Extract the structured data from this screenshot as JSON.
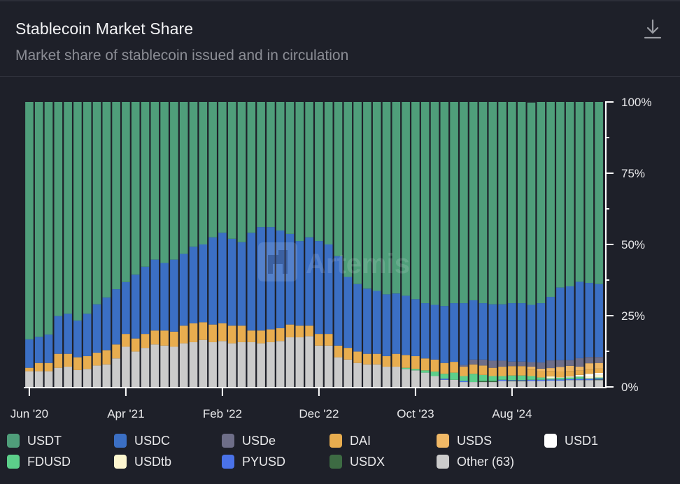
{
  "header": {
    "title": "Stablecoin Market Share",
    "subtitle": "Market share of stablecoin issued and in circulation",
    "download_icon": "download-icon"
  },
  "watermark": {
    "text": "Artemis",
    "icon": "artemis-logo-icon"
  },
  "colors": {
    "background": "#1e2029",
    "axis": "#ffffff"
  },
  "chart_data": {
    "type": "bar",
    "stacked": true,
    "normalized": true,
    "title": "Stablecoin Market Share",
    "subtitle": "Market share of stablecoin issued and in circulation",
    "xlabel": "",
    "ylabel": "",
    "ylim": [
      0,
      100
    ],
    "y_axis_position": "right",
    "y_ticks": [
      "0%",
      "25%",
      "50%",
      "75%",
      "100%"
    ],
    "y_tick_values": [
      0,
      25,
      50,
      75,
      100
    ],
    "y_minor_tick_values": [
      12.5,
      37.5,
      62.5,
      87.5
    ],
    "x_tick_labels": [
      "Jun '20",
      "Apr '21",
      "Feb '22",
      "Dec '22",
      "Oct '23",
      "Aug '24"
    ],
    "x_tick_indices": [
      0,
      10,
      20,
      30,
      40,
      50
    ],
    "legend_position": "bottom",
    "categories": [
      "Jun 2020",
      "Jul 2020",
      "Aug 2020",
      "Sep 2020",
      "Oct 2020",
      "Nov 2020",
      "Dec 2020",
      "Jan 2021",
      "Feb 2021",
      "Mar 2021",
      "Apr 2021",
      "May 2021",
      "Jun 2021",
      "Jul 2021",
      "Aug 2021",
      "Sep 2021",
      "Oct 2021",
      "Nov 2021",
      "Dec 2021",
      "Jan 2022",
      "Feb 2022",
      "Mar 2022",
      "Apr 2022",
      "May 2022",
      "Jun 2022",
      "Jul 2022",
      "Aug 2022",
      "Sep 2022",
      "Oct 2022",
      "Nov 2022",
      "Dec 2022",
      "Jan 2023",
      "Feb 2023",
      "Mar 2023",
      "Apr 2023",
      "May 2023",
      "Jun 2023",
      "Jul 2023",
      "Aug 2023",
      "Sep 2023",
      "Oct 2023",
      "Nov 2023",
      "Dec 2023",
      "Jan 2024",
      "Feb 2024",
      "Mar 2024",
      "Apr 2024",
      "May 2024",
      "Jun 2024",
      "Jul 2024",
      "Aug 2024",
      "Sep 2024",
      "Oct 2024",
      "Nov 2024",
      "Dec 2024",
      "Jan 2025",
      "Feb 2025",
      "Mar 2025",
      "Apr 2025",
      "May 2025"
    ],
    "stack_order_bottom_to_top": [
      "Other (63)",
      "USDX",
      "PYUSD",
      "FDUSD",
      "USDtb",
      "USD1",
      "DAI",
      "USDS",
      "USDe",
      "USDC",
      "USDT"
    ],
    "series": [
      {
        "name": "USDT",
        "color": "#4f9e7a",
        "values": [
          83.3,
          82.4,
          81.6,
          75.1,
          74.3,
          76.7,
          74.3,
          71.0,
          68.6,
          65.7,
          63.2,
          60.6,
          57.8,
          55.3,
          56.5,
          55.3,
          53.3,
          50.8,
          50.0,
          47.5,
          45.9,
          48.0,
          49.2,
          45.9,
          43.9,
          43.9,
          45.1,
          46.3,
          48.8,
          47.5,
          48.8,
          50.0,
          54.1,
          61.4,
          63.9,
          65.5,
          66.3,
          67.5,
          67.2,
          68.0,
          69.2,
          70.6,
          71.2,
          71.6,
          70.6,
          70.6,
          69.6,
          70.6,
          71.0,
          71.0,
          70.6,
          70.6,
          71.0,
          70.6,
          68.4,
          65.1,
          64.7,
          63.1,
          63.5,
          63.9
        ]
      },
      {
        "name": "USDC",
        "color": "#3b6fc4",
        "values": [
          10.0,
          9.2,
          10.0,
          13.3,
          14.1,
          12.9,
          14.9,
          17.0,
          18.5,
          19.4,
          18.2,
          22.4,
          23.6,
          24.9,
          23.7,
          25.3,
          25.2,
          26.9,
          27.3,
          30.6,
          31.8,
          30.5,
          29.3,
          34.3,
          36.3,
          35.9,
          34.3,
          31.8,
          29.7,
          31.0,
          32.6,
          31.4,
          31.4,
          24.9,
          23.7,
          22.9,
          22.1,
          21.7,
          21.2,
          20.8,
          20.0,
          19.4,
          19.2,
          20.0,
          20.6,
          21.7,
          20.8,
          19.8,
          19.8,
          19.8,
          20.5,
          20.5,
          20.1,
          20.8,
          22.3,
          25.5,
          25.9,
          26.8,
          26.0,
          25.6
        ]
      },
      {
        "name": "USDe",
        "color": "#6e6e88",
        "values": [
          0,
          0,
          0,
          0,
          0,
          0,
          0,
          0,
          0,
          0,
          0,
          0,
          0,
          0,
          0,
          0,
          0,
          0,
          0,
          0,
          0,
          0,
          0,
          0,
          0,
          0,
          0,
          0,
          0,
          0,
          0,
          0,
          0,
          0,
          0,
          0,
          0,
          0,
          0,
          0,
          0,
          0,
          0,
          0,
          0,
          0.6,
          1.7,
          2.1,
          2.5,
          2.1,
          1.6,
          1.6,
          1.6,
          2.2,
          2.7,
          2.4,
          2.0,
          3.0,
          2.2,
          2.1
        ]
      },
      {
        "name": "DAI",
        "color": "#e8ad4f",
        "values": [
          1.2,
          2.9,
          2.9,
          4.9,
          4.5,
          4.5,
          4.5,
          4.5,
          5.0,
          4.9,
          4.5,
          4.6,
          4.9,
          4.9,
          5.3,
          5.3,
          6.2,
          6.6,
          6.2,
          6.2,
          6.2,
          6.2,
          5.8,
          4.1,
          4.5,
          4.5,
          4.5,
          4.5,
          4.1,
          3.7,
          4.1,
          4.1,
          4.1,
          4.1,
          4.0,
          3.7,
          3.7,
          3.7,
          4.5,
          4.5,
          4.5,
          4.2,
          4.2,
          3.8,
          3.8,
          3.3,
          3.3,
          3.3,
          2.9,
          3.3,
          3.3,
          3.3,
          2.5,
          2.2,
          1.9,
          2.0,
          1.9,
          1.5,
          1.6,
          1.5
        ]
      },
      {
        "name": "USDS",
        "color": "#f0b866",
        "values": [
          0,
          0,
          0,
          0,
          0,
          0,
          0,
          0,
          0,
          0,
          0,
          0,
          0,
          0,
          0,
          0,
          0,
          0,
          0,
          0,
          0,
          0,
          0,
          0,
          0,
          0,
          0,
          0,
          0,
          0,
          0,
          0,
          0,
          0,
          0,
          0,
          0,
          0,
          0,
          0,
          0,
          0,
          0,
          0,
          0,
          0,
          0,
          0,
          0,
          0,
          0,
          0,
          0.8,
          0.9,
          1.0,
          1.6,
          1.8,
          1.4,
          2.1,
          2.0
        ]
      },
      {
        "name": "USD1",
        "color": "#ffffff",
        "values": [
          0,
          0,
          0,
          0,
          0,
          0,
          0,
          0,
          0,
          0,
          0,
          0,
          0,
          0,
          0,
          0,
          0,
          0,
          0,
          0,
          0,
          0,
          0,
          0,
          0,
          0,
          0,
          0,
          0,
          0,
          0,
          0,
          0,
          0,
          0,
          0,
          0,
          0,
          0,
          0,
          0,
          0,
          0,
          0,
          0,
          0,
          0,
          0,
          0,
          0,
          0,
          0,
          0,
          0,
          0,
          0,
          0.2,
          0.4,
          0.8,
          0.7
        ]
      },
      {
        "name": "FDUSD",
        "color": "#5ccf8a",
        "values": [
          0,
          0,
          0,
          0,
          0,
          0,
          0,
          0,
          0,
          0,
          0,
          0,
          0,
          0,
          0,
          0,
          0,
          0,
          0,
          0,
          0,
          0,
          0,
          0,
          0,
          0,
          0,
          0,
          0,
          0,
          0,
          0,
          0,
          0,
          0,
          0,
          0,
          0,
          0,
          0.4,
          0.5,
          0.8,
          1.6,
          1.7,
          2.5,
          1.7,
          2.9,
          2.1,
          1.7,
          1.3,
          1.6,
          1.6,
          1.3,
          0.8,
          0.4,
          0.6,
          0.6,
          0.8,
          0.2,
          0.3
        ]
      },
      {
        "name": "USDtb",
        "color": "#fdf6cf",
        "values": [
          0,
          0,
          0,
          0,
          0,
          0,
          0,
          0,
          0,
          0,
          0,
          0,
          0,
          0,
          0,
          0,
          0,
          0,
          0,
          0,
          0,
          0,
          0,
          0,
          0,
          0,
          0,
          0,
          0,
          0,
          0,
          0,
          0,
          0,
          0,
          0,
          0,
          0,
          0,
          0,
          0,
          0,
          0,
          0,
          0,
          0,
          0,
          0,
          0,
          0,
          0,
          0,
          0,
          0,
          0.7,
          0.2,
          0.2,
          0.2,
          0.8,
          0.9
        ]
      },
      {
        "name": "PYUSD",
        "color": "#4a72e8",
        "values": [
          0,
          0,
          0,
          0,
          0,
          0,
          0,
          0,
          0,
          0,
          0,
          0,
          0,
          0,
          0,
          0,
          0,
          0,
          0,
          0,
          0,
          0,
          0,
          0,
          0,
          0,
          0,
          0,
          0,
          0,
          0,
          0,
          0,
          0,
          0,
          0,
          0,
          0,
          0,
          0,
          0,
          0,
          0,
          0.4,
          0,
          0.4,
          0,
          0,
          0,
          0.4,
          0.2,
          0.2,
          0.4,
          0.4,
          0.4,
          0.4,
          0.3,
          0.4,
          0.4,
          0.4
        ]
      },
      {
        "name": "USDX",
        "color": "#3d6b43",
        "values": [
          0,
          0,
          0,
          0,
          0,
          0,
          0,
          0,
          0,
          0,
          0,
          0,
          0,
          0,
          0,
          0,
          0,
          0,
          0,
          0,
          0,
          0,
          0,
          0,
          0,
          0,
          0,
          0,
          0,
          0,
          0,
          0,
          0,
          0,
          0,
          0,
          0,
          0,
          0,
          0,
          0,
          0,
          0,
          0,
          0,
          0,
          0,
          0.4,
          0.4,
          0,
          0.2,
          0.2,
          0,
          0,
          0,
          0,
          0,
          0,
          0,
          0.2
        ]
      },
      {
        "name": "Other (63)",
        "color": "#cbcbcb",
        "values": [
          5.5,
          5.5,
          5.5,
          6.7,
          7.1,
          5.9,
          6.3,
          7.5,
          7.9,
          10.0,
          14.1,
          12.4,
          13.7,
          14.9,
          14.5,
          14.1,
          15.3,
          15.7,
          16.5,
          15.7,
          16.1,
          15.3,
          15.7,
          15.7,
          15.3,
          15.7,
          16.1,
          17.4,
          17.4,
          17.8,
          14.5,
          14.5,
          10.4,
          9.6,
          8.4,
          7.9,
          7.9,
          7.1,
          7.1,
          6.3,
          5.8,
          5.0,
          3.8,
          2.5,
          2.5,
          1.7,
          1.7,
          1.7,
          1.7,
          2.1,
          2.0,
          2.0,
          2.1,
          2.1,
          2.2,
          2.2,
          2.4,
          2.4,
          2.4,
          2.4
        ]
      }
    ]
  },
  "legend": [
    {
      "label": "USDT",
      "color": "#4f9e7a"
    },
    {
      "label": "USDC",
      "color": "#3b6fc4"
    },
    {
      "label": "USDe",
      "color": "#6e6e88"
    },
    {
      "label": "DAI",
      "color": "#e8ad4f"
    },
    {
      "label": "USDS",
      "color": "#f0b866"
    },
    {
      "label": "USD1",
      "color": "#ffffff"
    },
    {
      "label": "FDUSD",
      "color": "#5ccf8a"
    },
    {
      "label": "USDtb",
      "color": "#fdf6cf"
    },
    {
      "label": "PYUSD",
      "color": "#4a72e8"
    },
    {
      "label": "USDX",
      "color": "#3d6b43"
    },
    {
      "label": "Other (63)",
      "color": "#cbcbcb"
    }
  ]
}
